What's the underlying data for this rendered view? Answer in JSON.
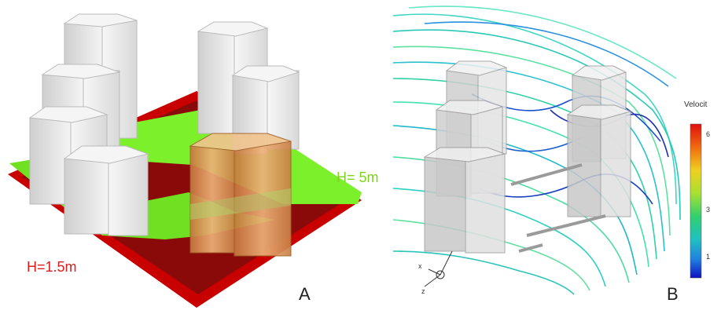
{
  "panel_a": {
    "label": "A",
    "height_label_low": "H=1.5m",
    "height_label_high": "H= 5m"
  },
  "panel_b": {
    "label": "B",
    "legend_title": "Velocit",
    "legend_ticks": [
      "6",
      "3",
      "1"
    ],
    "axis_labels": [
      "x",
      "z"
    ]
  },
  "colors": {
    "ground_red": "#c80000",
    "ground_dark": "#8a0000",
    "green_layer": "#7cf02a",
    "building_gray": "#e9e9e9",
    "highlight_building": "#e2a060"
  }
}
